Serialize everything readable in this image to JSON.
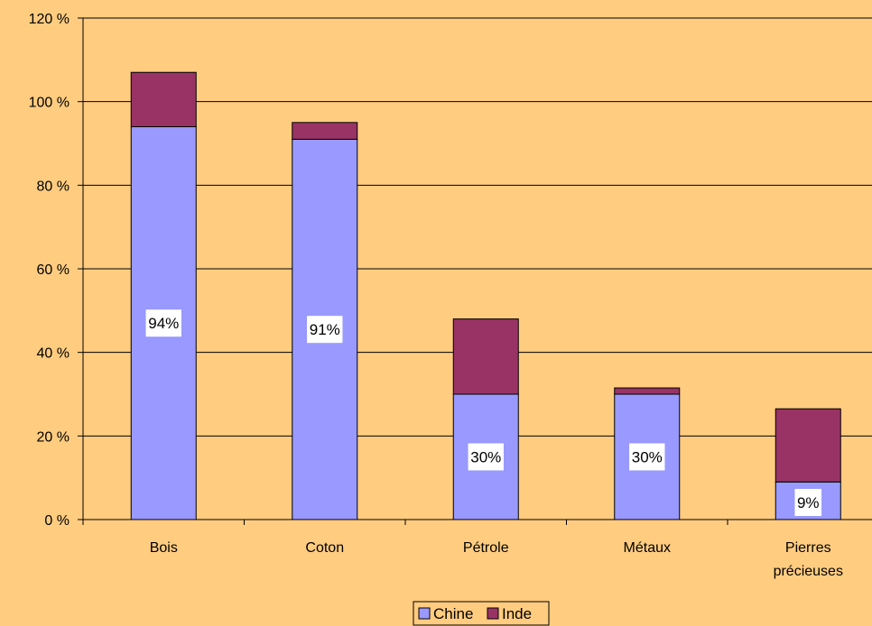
{
  "colors": {
    "background": "#FFCC80",
    "chine": "#9999FF",
    "inde": "#993366",
    "grid": "#000000"
  },
  "chart_data": {
    "type": "bar",
    "stacked": true,
    "title": "",
    "xlabel": "",
    "ylabel": "",
    "ylim": [
      0,
      120
    ],
    "y_ticks": [
      0,
      20,
      40,
      60,
      80,
      100,
      120
    ],
    "y_tick_labels": [
      "0 %",
      "20 %",
      "40 %",
      "60 %",
      "80 %",
      "100 %",
      "120 %"
    ],
    "grid": true,
    "legend_position": "bottom",
    "categories": [
      [
        "Bois"
      ],
      [
        "Coton"
      ],
      [
        "Pétrole"
      ],
      [
        "Métaux"
      ],
      [
        "Pierres",
        "précieuses"
      ]
    ],
    "series": [
      {
        "name": "Chine",
        "color": "#9999FF",
        "values": [
          94,
          91,
          30,
          30,
          9
        ],
        "data_labels": [
          "94%",
          "91%",
          "30%",
          "30%",
          "9%"
        ]
      },
      {
        "name": "Inde",
        "color": "#993366",
        "values": [
          13,
          4,
          18,
          1.5,
          17.5
        ]
      }
    ]
  }
}
